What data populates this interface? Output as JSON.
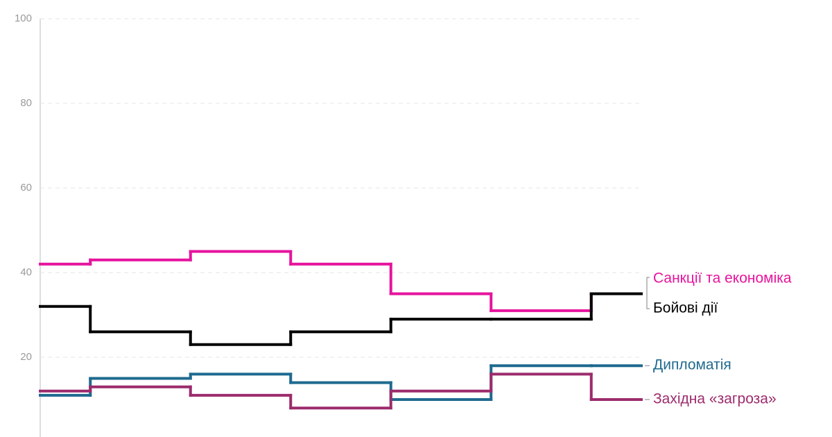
{
  "chart_data": {
    "type": "step",
    "categories": [
      null,
      null,
      null,
      null,
      null,
      null,
      null
    ],
    "ylim": [
      0,
      100
    ],
    "yticks": [
      20,
      40,
      60,
      80,
      100
    ],
    "grid": true,
    "series": [
      {
        "name": "Санкції та економіка",
        "color": "#e6139e",
        "values": [
          42,
          43,
          45,
          42,
          35,
          31,
          35
        ]
      },
      {
        "name": "Бойові дії",
        "color": "#000000",
        "values": [
          32,
          26,
          23,
          26,
          29,
          29,
          35
        ]
      },
      {
        "name": "Дипломатія",
        "color": "#1f6a8f",
        "values": [
          11,
          15,
          16,
          14,
          10,
          18,
          18
        ]
      },
      {
        "name": "Західна «загроза»",
        "color": "#9c2b6c",
        "values": [
          12,
          13,
          11,
          8,
          12,
          16,
          10
        ]
      }
    ]
  }
}
